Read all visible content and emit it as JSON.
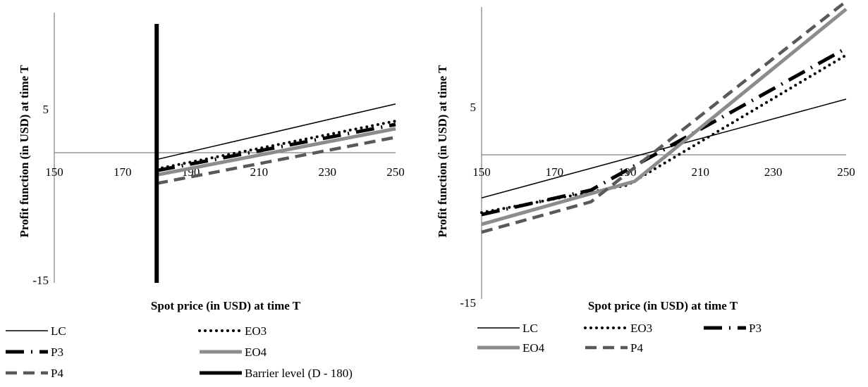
{
  "chart_data": [
    {
      "type": "line",
      "xlabel": "Spot price (in USD) at time T",
      "ylabel": "Profit function (in USD) at time T",
      "xlim": [
        150,
        250
      ],
      "ylim": [
        -15,
        10
      ],
      "x_ticks": [
        "150",
        "170",
        "190",
        "210",
        "230",
        "250"
      ],
      "y_ticks": [
        "5",
        "-15"
      ],
      "grid": false,
      "legend_position": "bottom",
      "series": [
        {
          "name": "LC",
          "color": "#000000",
          "style": "solid-thin",
          "points": [
            [
              180,
              -0.9
            ],
            [
              250,
              5.6
            ]
          ]
        },
        {
          "name": "EO3",
          "color": "#000000",
          "style": "dotted",
          "points": [
            [
              180,
              -2.0
            ],
            [
              250,
              3.6
            ]
          ]
        },
        {
          "name": "P3",
          "color": "#000000",
          "style": "long-dash-dot",
          "points": [
            [
              180,
              -2.2
            ],
            [
              250,
              3.2
            ]
          ]
        },
        {
          "name": "EO4",
          "color": "#8c8c8c",
          "style": "solid-thick",
          "points": [
            [
              180,
              -2.7
            ],
            [
              250,
              2.7
            ]
          ]
        },
        {
          "name": "P4",
          "color": "#595959",
          "style": "dashed",
          "points": [
            [
              180,
              -3.7
            ],
            [
              250,
              1.7
            ]
          ]
        },
        {
          "name": "Barrier level (D - 180)",
          "color": "#000000",
          "style": "vertical-bar",
          "points": [
            [
              180,
              -17
            ],
            [
              180,
              12
            ]
          ]
        }
      ]
    },
    {
      "type": "line",
      "xlabel": "Spot price (in USD) at time T",
      "ylabel": "Profit function (in USD) at time T",
      "xlim": [
        150,
        250
      ],
      "ylim": [
        -15,
        15
      ],
      "x_ticks": [
        "150",
        "170",
        "190",
        "210",
        "230",
        "250"
      ],
      "y_ticks": [
        "5",
        "-15"
      ],
      "grid": false,
      "legend_position": "bottom",
      "series": [
        {
          "name": "LC",
          "color": "#000000",
          "style": "solid-thin",
          "points": [
            [
              150,
              -4.3
            ],
            [
              250,
              5.8
            ]
          ]
        },
        {
          "name": "EO3",
          "color": "#000000",
          "style": "dotted",
          "points": [
            [
              150,
              -5.8
            ],
            [
              190,
              -3.0
            ],
            [
              250,
              10.3
            ]
          ]
        },
        {
          "name": "P3",
          "color": "#000000",
          "style": "long-dash-dot",
          "points": [
            [
              150,
              -6.0
            ],
            [
              180,
              -3.5
            ],
            [
              250,
              11.0
            ]
          ]
        },
        {
          "name": "EO4",
          "color": "#8c8c8c",
          "style": "solid-thick",
          "points": [
            [
              150,
              -7.0
            ],
            [
              192,
              -2.6
            ],
            [
              250,
              15.0
            ]
          ]
        },
        {
          "name": "P4",
          "color": "#595959",
          "style": "dashed",
          "points": [
            [
              150,
              -7.8
            ],
            [
              180,
              -4.7
            ],
            [
              250,
              15.8
            ]
          ]
        }
      ]
    }
  ]
}
